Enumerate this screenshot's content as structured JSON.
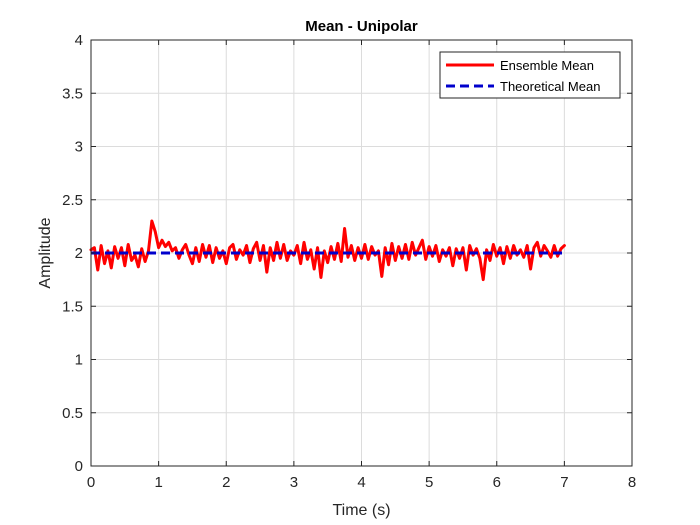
{
  "chart_data": {
    "type": "line",
    "title": "Mean - Unipolar",
    "xlabel": "Time (s)",
    "ylabel": "Amplitude",
    "xlim": [
      0,
      8
    ],
    "ylim": [
      0,
      4
    ],
    "xticks": [
      "0",
      "1",
      "2",
      "3",
      "4",
      "5",
      "6",
      "7",
      "8"
    ],
    "yticks": [
      "0",
      "0.5",
      "1",
      "1.5",
      "2",
      "2.5",
      "3",
      "3.5",
      "4"
    ],
    "grid": true,
    "legend_position": "top-right",
    "series": [
      {
        "name": "Ensemble Mean",
        "color": "#ff0000",
        "style": "solid",
        "x": [
          0,
          0.05,
          0.1,
          0.15,
          0.2,
          0.25,
          0.3,
          0.35,
          0.4,
          0.45,
          0.5,
          0.55,
          0.6,
          0.65,
          0.7,
          0.75,
          0.8,
          0.85,
          0.9,
          0.95,
          1.0,
          1.05,
          1.1,
          1.15,
          1.2,
          1.25,
          1.3,
          1.35,
          1.4,
          1.45,
          1.5,
          1.55,
          1.6,
          1.65,
          1.7,
          1.75,
          1.8,
          1.85,
          1.9,
          1.95,
          2.0,
          2.05,
          2.1,
          2.15,
          2.2,
          2.25,
          2.3,
          2.35,
          2.4,
          2.45,
          2.5,
          2.55,
          2.6,
          2.65,
          2.7,
          2.75,
          2.8,
          2.85,
          2.9,
          2.95,
          3.0,
          3.05,
          3.1,
          3.15,
          3.2,
          3.25,
          3.3,
          3.35,
          3.4,
          3.45,
          3.5,
          3.55,
          3.6,
          3.65,
          3.7,
          3.75,
          3.8,
          3.85,
          3.9,
          3.95,
          4.0,
          4.05,
          4.1,
          4.15,
          4.2,
          4.25,
          4.3,
          4.35,
          4.4,
          4.45,
          4.5,
          4.55,
          4.6,
          4.65,
          4.7,
          4.75,
          4.8,
          4.85,
          4.9,
          4.95,
          5.0,
          5.05,
          5.1,
          5.15,
          5.2,
          5.25,
          5.3,
          5.35,
          5.4,
          5.45,
          5.5,
          5.55,
          5.6,
          5.65,
          5.7,
          5.75,
          5.8,
          5.85,
          5.9,
          5.95,
          6.0,
          6.05,
          6.1,
          6.15,
          6.2,
          6.25,
          6.3,
          6.35,
          6.4,
          6.45,
          6.5,
          6.55,
          6.6,
          6.65,
          6.7,
          6.75,
          6.8,
          6.85,
          6.9,
          6.95,
          7.0
        ],
        "y": [
          2.03,
          2.05,
          1.84,
          2.07,
          1.9,
          2.02,
          1.86,
          2.06,
          1.95,
          2.05,
          1.88,
          2.08,
          1.93,
          1.98,
          1.87,
          2.04,
          1.92,
          2.02,
          2.3,
          2.2,
          2.05,
          2.12,
          2.06,
          2.1,
          2.02,
          2.05,
          1.95,
          2.03,
          2.08,
          1.98,
          1.9,
          2.05,
          1.92,
          2.08,
          1.96,
          2.07,
          1.91,
          2.05,
          1.95,
          2.02,
          1.9,
          2.05,
          2.08,
          1.94,
          2.03,
          1.98,
          2.07,
          1.91,
          2.04,
          2.1,
          1.93,
          2.07,
          1.82,
          2.05,
          1.93,
          2.1,
          1.95,
          2.08,
          1.93,
          2.02,
          1.98,
          2.07,
          1.9,
          2.1,
          1.94,
          2.03,
          1.85,
          2.05,
          1.77,
          2.02,
          1.91,
          2.06,
          1.94,
          2.09,
          1.92,
          2.23,
          1.96,
          2.07,
          1.93,
          2.05,
          1.95,
          2.08,
          1.94,
          2.06,
          1.98,
          2.02,
          1.78,
          2.05,
          1.89,
          2.09,
          1.93,
          2.06,
          1.95,
          2.08,
          1.94,
          2.1,
          1.98,
          2.05,
          2.12,
          1.94,
          2.06,
          1.97,
          2.07,
          1.92,
          2.03,
          1.97,
          2.05,
          1.88,
          2.04,
          1.95,
          2.05,
          1.84,
          2.07,
          1.98,
          2.04,
          1.95,
          1.75,
          2.03,
          1.93,
          2.08,
          1.97,
          2.05,
          1.9,
          2.06,
          1.95,
          2.07,
          1.98,
          2.03,
          1.96,
          2.07,
          1.85,
          2.05,
          2.1,
          1.97,
          2.07,
          2.02,
          1.96,
          2.07,
          1.97,
          2.04,
          2.07
        ]
      },
      {
        "name": "Theoretical Mean",
        "color": "#0000cc",
        "style": "dashed",
        "x": [
          0,
          7
        ],
        "y": [
          2,
          2
        ]
      }
    ]
  }
}
